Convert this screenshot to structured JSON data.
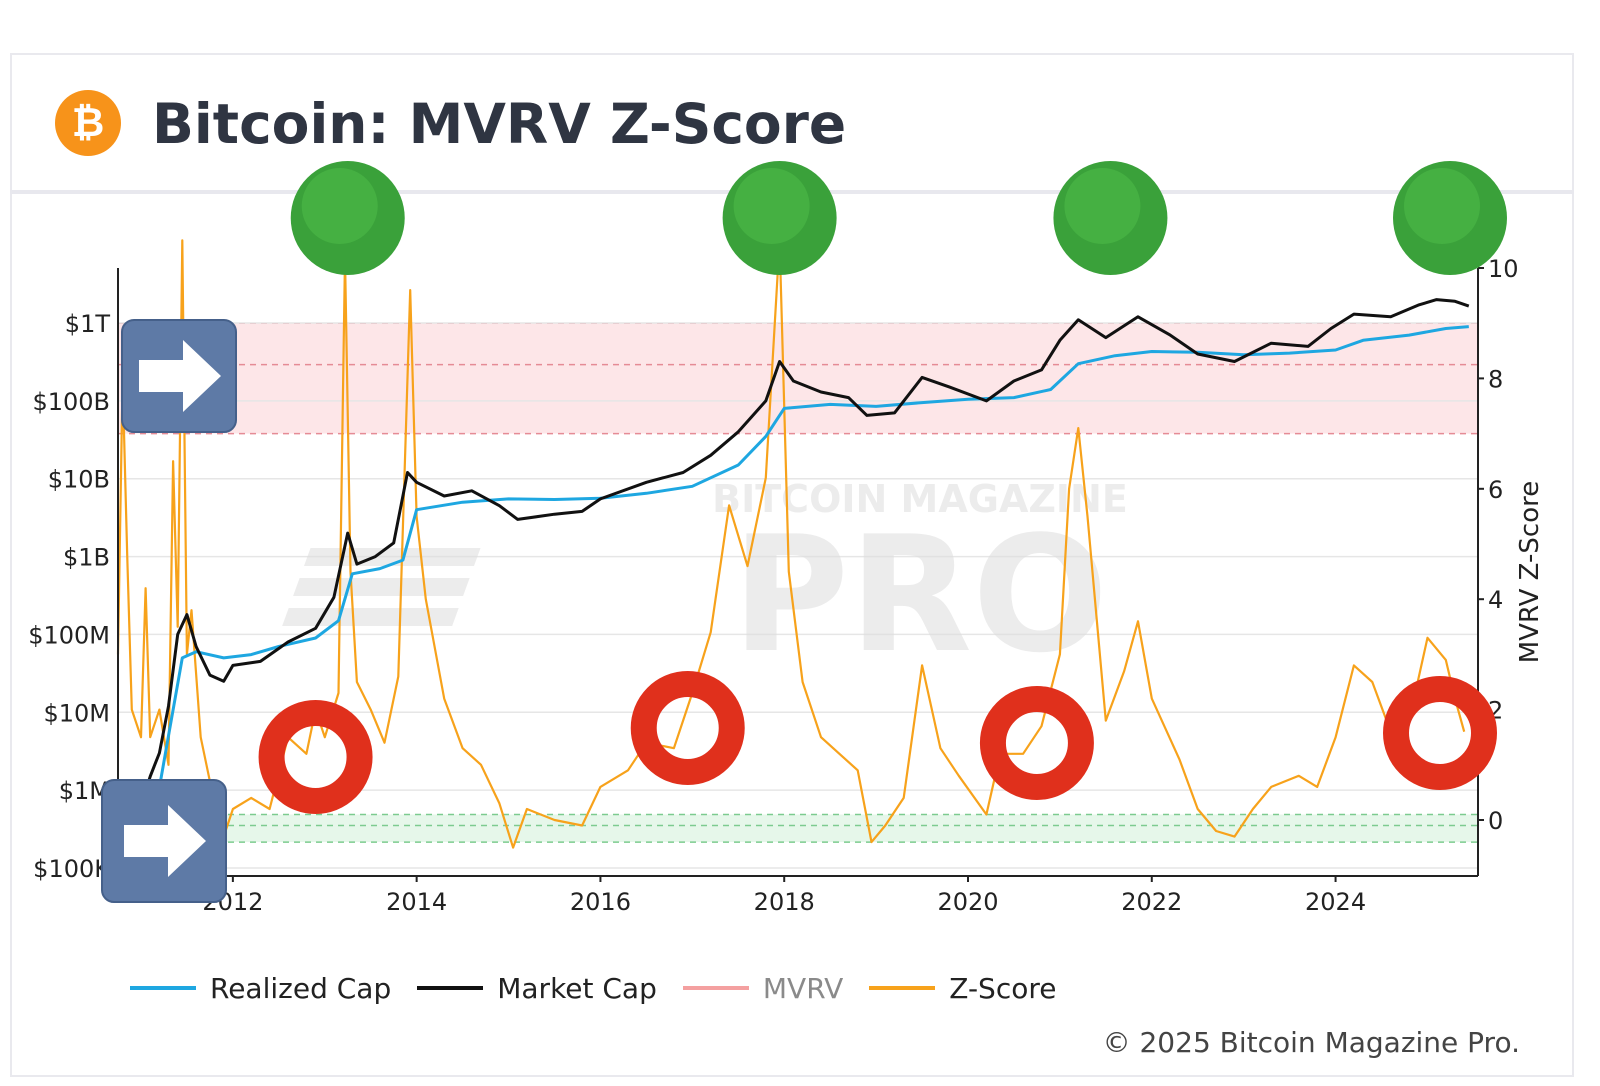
{
  "header": {
    "title": "Bitcoin: MVRV Z-Score",
    "logo_symbol": "₿",
    "logo_icon": "bitcoin-icon"
  },
  "watermark": {
    "top": "BITCOIN MAGAZINE",
    "main": "PRO"
  },
  "legend": [
    {
      "label": "Realized Cap",
      "color": "#1ea7e1"
    },
    {
      "label": "Market Cap",
      "color": "#111111"
    },
    {
      "label": "MVRV",
      "color": "#f4a0a0"
    },
    {
      "label": "Z-Score",
      "color": "#f7a21b"
    }
  ],
  "footer": {
    "copyright": "© 2025 Bitcoin Magazine Pro."
  },
  "colors": {
    "sell_zone": "#fde6e8",
    "buy_zone": "#e6f7ea",
    "top_marker": "#3aa13a",
    "bottom_marker": "#e0301c",
    "arrow": "#5e7aa6"
  },
  "annotations": {
    "top_markers_years": [
      2013.25,
      2017.95,
      2021.55,
      2025.55
    ],
    "bottom_rings_years": [
      2012.9,
      2016.95,
      2020.75,
      2025.5
    ],
    "arrow_icons": [
      "arrow-right-icon",
      "arrow-right-icon"
    ]
  },
  "chart_data": {
    "type": "line",
    "title": "Bitcoin: MVRV Z-Score",
    "xlabel": "",
    "ylabel_left": "",
    "ylabel_right": "MVRV Z-Score",
    "x_ticks": [
      "2012",
      "2014",
      "2016",
      "2018",
      "2020",
      "2022",
      "2024"
    ],
    "xlim": [
      2010.75,
      2025.55
    ],
    "y_left_scale": "log",
    "y_left_ticks": [
      "$100K",
      "$1M",
      "$10M",
      "$100M",
      "$1B",
      "$10B",
      "$100B",
      "$1T"
    ],
    "y_left_tick_values": [
      100000,
      1000000,
      10000000,
      100000000,
      1000000000,
      10000000000,
      100000000000,
      1000000000000
    ],
    "y_right_ticks": [
      "0",
      "2",
      "4",
      "6",
      "8",
      "10"
    ],
    "y_right_range": [
      -1,
      10
    ],
    "zones": {
      "sell_zone_zscore": [
        7,
        9
      ],
      "buy_zone_zscore": [
        -0.4,
        0.1
      ]
    },
    "grid": true,
    "legend_position": "bottom",
    "series": [
      {
        "name": "Market Cap",
        "axis": "left",
        "points": [
          [
            2010.8,
            250000
          ],
          [
            2010.95,
            400000
          ],
          [
            2011.1,
            1500000
          ],
          [
            2011.2,
            3000000
          ],
          [
            2011.3,
            12000000
          ],
          [
            2011.4,
            100000000
          ],
          [
            2011.5,
            180000000
          ],
          [
            2011.6,
            70000000
          ],
          [
            2011.75,
            30000000
          ],
          [
            2011.9,
            25000000
          ],
          [
            2012.0,
            40000000
          ],
          [
            2012.3,
            45000000
          ],
          [
            2012.6,
            80000000
          ],
          [
            2012.9,
            120000000
          ],
          [
            2013.1,
            300000000
          ],
          [
            2013.25,
            2000000000
          ],
          [
            2013.35,
            800000000
          ],
          [
            2013.55,
            1000000000
          ],
          [
            2013.75,
            1500000000
          ],
          [
            2013.9,
            12000000000
          ],
          [
            2014.0,
            9000000000
          ],
          [
            2014.3,
            6000000000
          ],
          [
            2014.6,
            7000000000
          ],
          [
            2014.9,
            4500000000
          ],
          [
            2015.1,
            3000000000
          ],
          [
            2015.5,
            3500000000
          ],
          [
            2015.8,
            3800000000
          ],
          [
            2016.0,
            5500000000
          ],
          [
            2016.5,
            9000000000
          ],
          [
            2016.9,
            12000000000
          ],
          [
            2017.2,
            20000000000
          ],
          [
            2017.5,
            40000000000
          ],
          [
            2017.8,
            100000000000
          ],
          [
            2017.95,
            320000000000
          ],
          [
            2018.1,
            180000000000
          ],
          [
            2018.4,
            130000000000
          ],
          [
            2018.7,
            110000000000
          ],
          [
            2018.9,
            65000000000
          ],
          [
            2019.2,
            70000000000
          ],
          [
            2019.5,
            200000000000
          ],
          [
            2019.8,
            150000000000
          ],
          [
            2020.2,
            100000000000
          ],
          [
            2020.5,
            180000000000
          ],
          [
            2020.8,
            250000000000
          ],
          [
            2021.0,
            600000000000
          ],
          [
            2021.2,
            1100000000000
          ],
          [
            2021.5,
            650000000000
          ],
          [
            2021.85,
            1200000000000
          ],
          [
            2022.2,
            700000000000
          ],
          [
            2022.5,
            400000000000
          ],
          [
            2022.9,
            320000000000
          ],
          [
            2023.3,
            550000000000
          ],
          [
            2023.7,
            500000000000
          ],
          [
            2023.95,
            850000000000
          ],
          [
            2024.2,
            1300000000000
          ],
          [
            2024.6,
            1200000000000
          ],
          [
            2024.9,
            1700000000000
          ],
          [
            2025.1,
            2000000000000
          ],
          [
            2025.3,
            1900000000000
          ],
          [
            2025.45,
            1650000000000
          ]
        ]
      },
      {
        "name": "Realized Cap",
        "axis": "left",
        "points": [
          [
            2011.15,
            500000
          ],
          [
            2011.3,
            5000000
          ],
          [
            2011.45,
            50000000
          ],
          [
            2011.6,
            60000000
          ],
          [
            2011.9,
            50000000
          ],
          [
            2012.2,
            55000000
          ],
          [
            2012.5,
            70000000
          ],
          [
            2012.9,
            90000000
          ],
          [
            2013.15,
            150000000
          ],
          [
            2013.3,
            600000000
          ],
          [
            2013.6,
            700000000
          ],
          [
            2013.85,
            900000000
          ],
          [
            2014.0,
            4000000000
          ],
          [
            2014.5,
            5000000000
          ],
          [
            2015.0,
            5500000000
          ],
          [
            2015.5,
            5400000000
          ],
          [
            2016.0,
            5600000000
          ],
          [
            2016.5,
            6500000000
          ],
          [
            2017.0,
            8000000000
          ],
          [
            2017.5,
            15000000000
          ],
          [
            2017.8,
            35000000000
          ],
          [
            2018.0,
            80000000000
          ],
          [
            2018.5,
            90000000000
          ],
          [
            2019.0,
            85000000000
          ],
          [
            2019.5,
            95000000000
          ],
          [
            2020.0,
            105000000000
          ],
          [
            2020.5,
            110000000000
          ],
          [
            2020.9,
            140000000000
          ],
          [
            2021.2,
            300000000000
          ],
          [
            2021.6,
            380000000000
          ],
          [
            2022.0,
            430000000000
          ],
          [
            2022.5,
            420000000000
          ],
          [
            2023.0,
            390000000000
          ],
          [
            2023.5,
            410000000000
          ],
          [
            2024.0,
            450000000000
          ],
          [
            2024.3,
            600000000000
          ],
          [
            2024.8,
            700000000000
          ],
          [
            2025.2,
            850000000000
          ],
          [
            2025.45,
            900000000000
          ]
        ]
      },
      {
        "name": "Z-Score",
        "axis": "right",
        "points": [
          [
            2010.75,
            3
          ],
          [
            2010.8,
            8
          ],
          [
            2010.85,
            4.8
          ],
          [
            2010.9,
            2
          ],
          [
            2011.0,
            1.5
          ],
          [
            2011.05,
            4.2
          ],
          [
            2011.1,
            1.5
          ],
          [
            2011.2,
            2
          ],
          [
            2011.3,
            1.0
          ],
          [
            2011.35,
            6.5
          ],
          [
            2011.4,
            3.5
          ],
          [
            2011.45,
            10.5
          ],
          [
            2011.5,
            3
          ],
          [
            2011.55,
            3.8
          ],
          [
            2011.65,
            1.5
          ],
          [
            2011.8,
            0.3
          ],
          [
            2011.9,
            -0.3
          ],
          [
            2012.0,
            0.2
          ],
          [
            2012.2,
            0.4
          ],
          [
            2012.4,
            0.2
          ],
          [
            2012.6,
            1.5
          ],
          [
            2012.8,
            1.2
          ],
          [
            2012.9,
            2.0
          ],
          [
            2013.0,
            1.5
          ],
          [
            2013.15,
            2.3
          ],
          [
            2013.22,
            10.2
          ],
          [
            2013.28,
            4.5
          ],
          [
            2013.35,
            2.5
          ],
          [
            2013.5,
            2.0
          ],
          [
            2013.65,
            1.4
          ],
          [
            2013.8,
            2.6
          ],
          [
            2013.93,
            9.6
          ],
          [
            2014.0,
            5.5
          ],
          [
            2014.1,
            4.0
          ],
          [
            2014.3,
            2.2
          ],
          [
            2014.5,
            1.3
          ],
          [
            2014.7,
            1.0
          ],
          [
            2014.9,
            0.3
          ],
          [
            2015.05,
            -0.5
          ],
          [
            2015.2,
            0.2
          ],
          [
            2015.5,
            0.0
          ],
          [
            2015.8,
            -0.1
          ],
          [
            2016.0,
            0.6
          ],
          [
            2016.3,
            0.9
          ],
          [
            2016.5,
            1.4
          ],
          [
            2016.8,
            1.3
          ],
          [
            2017.0,
            2.3
          ],
          [
            2017.2,
            3.4
          ],
          [
            2017.4,
            5.7
          ],
          [
            2017.6,
            4.6
          ],
          [
            2017.8,
            6.2
          ],
          [
            2017.95,
            10.5
          ],
          [
            2018.05,
            4.5
          ],
          [
            2018.2,
            2.5
          ],
          [
            2018.4,
            1.5
          ],
          [
            2018.6,
            1.2
          ],
          [
            2018.8,
            0.9
          ],
          [
            2018.95,
            -0.4
          ],
          [
            2019.1,
            -0.1
          ],
          [
            2019.3,
            0.4
          ],
          [
            2019.5,
            2.8
          ],
          [
            2019.7,
            1.3
          ],
          [
            2019.9,
            0.8
          ],
          [
            2020.2,
            0.1
          ],
          [
            2020.35,
            1.2
          ],
          [
            2020.6,
            1.2
          ],
          [
            2020.8,
            1.7
          ],
          [
            2021.0,
            3.0
          ],
          [
            2021.1,
            6.0
          ],
          [
            2021.2,
            7.1
          ],
          [
            2021.3,
            5.5
          ],
          [
            2021.5,
            1.8
          ],
          [
            2021.7,
            2.7
          ],
          [
            2021.85,
            3.6
          ],
          [
            2022.0,
            2.2
          ],
          [
            2022.3,
            1.1
          ],
          [
            2022.5,
            0.2
          ],
          [
            2022.7,
            -0.2
          ],
          [
            2022.9,
            -0.3
          ],
          [
            2023.1,
            0.2
          ],
          [
            2023.3,
            0.6
          ],
          [
            2023.6,
            0.8
          ],
          [
            2023.8,
            0.6
          ],
          [
            2024.0,
            1.5
          ],
          [
            2024.2,
            2.8
          ],
          [
            2024.4,
            2.5
          ],
          [
            2024.6,
            1.6
          ],
          [
            2024.8,
            1.8
          ],
          [
            2025.0,
            3.3
          ],
          [
            2025.2,
            2.9
          ],
          [
            2025.3,
            2.2
          ],
          [
            2025.4,
            1.6
          ]
        ]
      }
    ]
  }
}
